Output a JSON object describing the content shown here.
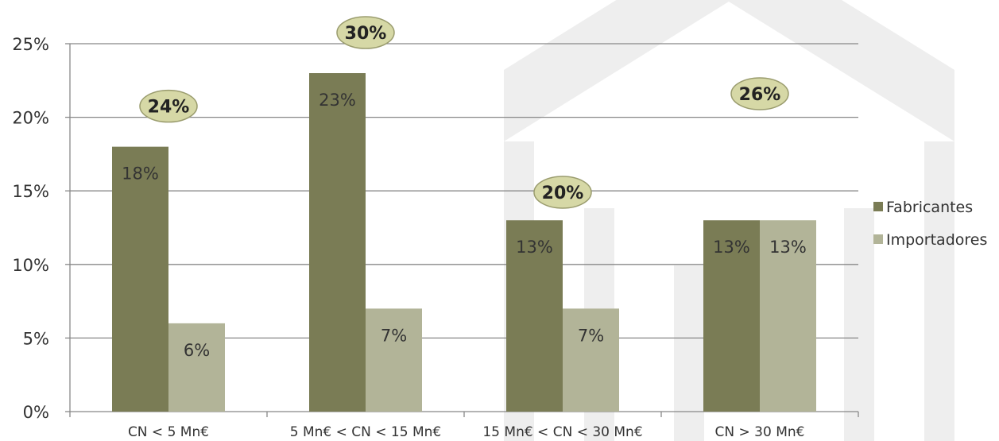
{
  "chart_data": {
    "type": "bar",
    "categories": [
      "CN < 5 Mn€",
      "5 Mn€ < CN < 15 Mn€",
      "15 Mn€ < CN < 30 Mn€",
      "CN > 30 Mn€"
    ],
    "series": [
      {
        "name": "Fabricantes",
        "values": [
          18,
          23,
          13,
          13
        ],
        "labels": [
          "18%",
          "23%",
          "13%",
          "13%"
        ],
        "color": "#7a7c55"
      },
      {
        "name": "Importadores",
        "values": [
          6,
          7,
          7,
          13
        ],
        "labels": [
          "6%",
          "7%",
          "7%",
          "13%"
        ],
        "color": "#b2b498"
      }
    ],
    "totals": [
      "24%",
      "30%",
      "20%",
      "26%"
    ],
    "y_ticks": [
      0,
      5,
      10,
      15,
      20,
      25
    ],
    "y_tick_labels": [
      "0%",
      "5%",
      "10%",
      "15%",
      "20%",
      "25%"
    ],
    "ylim": [
      0,
      25
    ],
    "grid": true,
    "legend_position": "right",
    "title": "",
    "xlabel": "",
    "ylabel": ""
  },
  "colors": {
    "total_bubble_fill": "#d6d8a6",
    "total_bubble_stroke": "#9a9c6e",
    "gridline": "#888888",
    "watermark": "#eeeeee"
  }
}
